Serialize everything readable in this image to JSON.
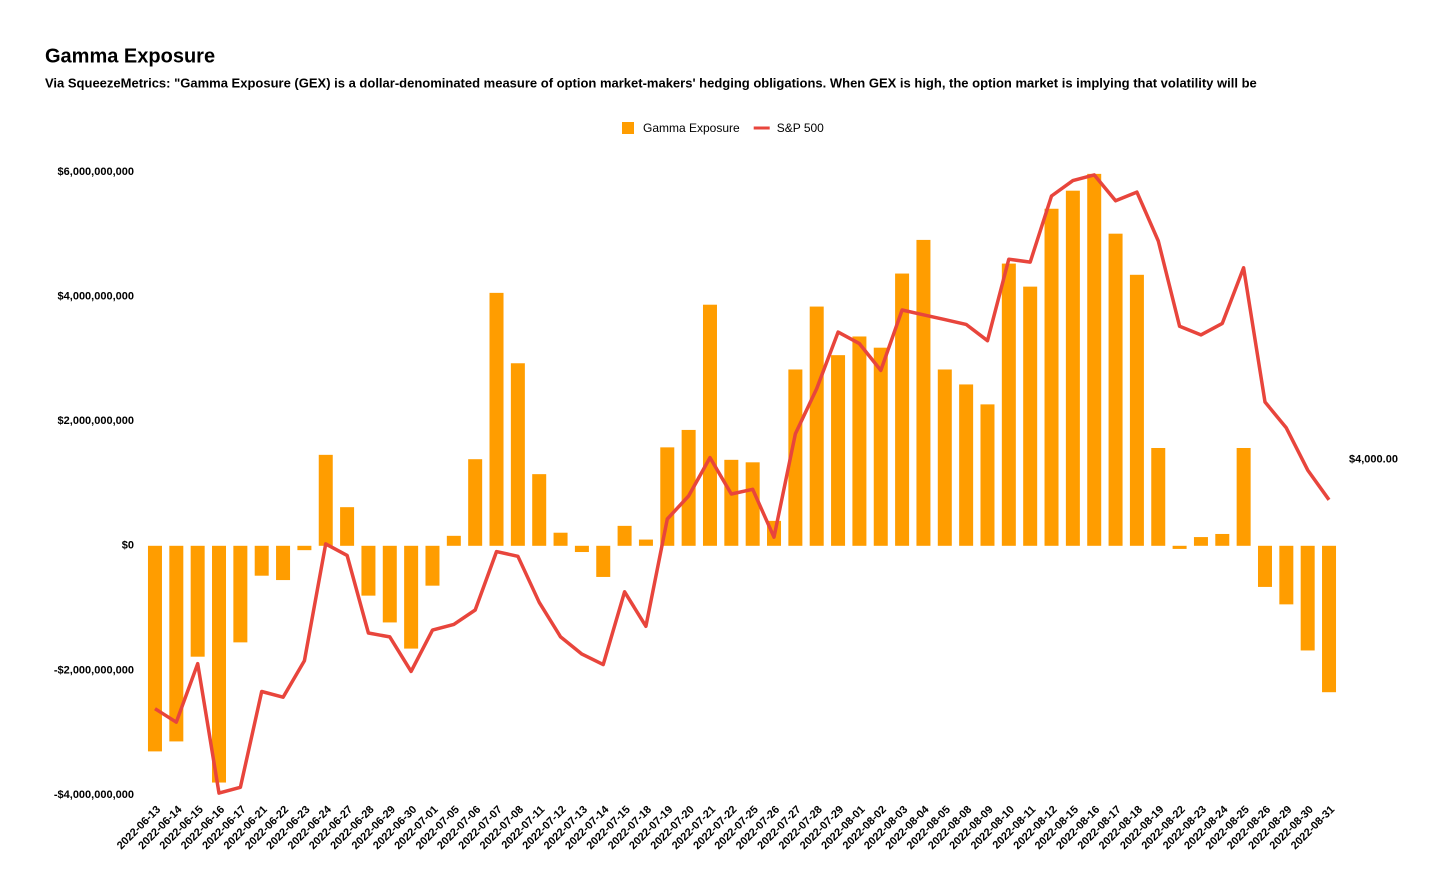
{
  "chart_data": {
    "type": "bar_line",
    "title": "Gamma Exposure",
    "subtitle": "Via SqueezeMetrics: \"Gamma Exposure (GEX) is a dollar-denominated measure of option market-makers' hedging obligations. When GEX is high, the option market is implying that volatility will be",
    "categories": [
      "2022-06-13",
      "2022-06-14",
      "2022-06-15",
      "2022-06-16",
      "2022-06-17",
      "2022-06-21",
      "2022-06-22",
      "2022-06-23",
      "2022-06-24",
      "2022-06-27",
      "2022-06-28",
      "2022-06-29",
      "2022-06-30",
      "2022-07-01",
      "2022-07-05",
      "2022-07-06",
      "2022-07-07",
      "2022-07-08",
      "2022-07-11",
      "2022-07-12",
      "2022-07-13",
      "2022-07-14",
      "2022-07-15",
      "2022-07-18",
      "2022-07-19",
      "2022-07-20",
      "2022-07-21",
      "2022-07-22",
      "2022-07-25",
      "2022-07-26",
      "2022-07-27",
      "2022-07-28",
      "2022-07-29",
      "2022-08-01",
      "2022-08-02",
      "2022-08-03",
      "2022-08-04",
      "2022-08-05",
      "2022-08-08",
      "2022-08-09",
      "2022-08-10",
      "2022-08-11",
      "2022-08-12",
      "2022-08-15",
      "2022-08-16",
      "2022-08-17",
      "2022-08-18",
      "2022-08-19",
      "2022-08-22",
      "2022-08-23",
      "2022-08-24",
      "2022-08-25",
      "2022-08-26",
      "2022-08-29",
      "2022-08-30",
      "2022-08-31"
    ],
    "series": [
      {
        "name": "Gamma Exposure",
        "type": "bar",
        "color": "#ff9d00",
        "values": [
          -3300000000,
          -3140000000,
          -1780000000,
          -3800000000,
          -1550000000,
          -480000000,
          -550000000,
          -70000000,
          1460000000,
          620000000,
          -800000000,
          -1230000000,
          -1650000000,
          -640000000,
          160000000,
          1390000000,
          4060000000,
          2930000000,
          1150000000,
          210000000,
          -100000000,
          -500000000,
          320000000,
          100000000,
          1580000000,
          1860000000,
          3870000000,
          1380000000,
          1340000000,
          400000000,
          2830000000,
          3840000000,
          3060000000,
          3360000000,
          3180000000,
          4370000000,
          4910000000,
          2830000000,
          2590000000,
          2270000000,
          4530000000,
          4160000000,
          5410000000,
          5700000000,
          5970000000,
          5010000000,
          4350000000,
          1570000000,
          -50000000,
          140000000,
          190000000,
          1570000000,
          -660000000,
          -940000000,
          -1680000000,
          -2350000000
        ]
      },
      {
        "name": "S&P 500",
        "type": "line",
        "axis": "y2",
        "color": "#e8453c",
        "values": [
          3740,
          3726,
          3787,
          3652,
          3658,
          3758,
          3752,
          3790,
          3912,
          3900,
          3819,
          3815,
          3779,
          3822,
          3828,
          3843,
          3904,
          3899,
          3851,
          3815,
          3797,
          3786,
          3862,
          3826,
          3938,
          3962,
          4002,
          3964,
          3969,
          3919,
          4027,
          4074,
          4133,
          4121,
          4093,
          4156,
          4151,
          4146,
          4141,
          4124,
          4209,
          4206,
          4275,
          4291,
          4297,
          4270,
          4279,
          4228,
          4139,
          4130,
          4142,
          4200,
          4060,
          4033,
          3989,
          3958
        ]
      }
    ],
    "ylim": [
      -4000000000,
      6000000000
    ],
    "yticks": [
      {
        "value": -4000000000,
        "label": "-$4,000,000,000"
      },
      {
        "value": -2000000000,
        "label": "-$2,000,000,000"
      },
      {
        "value": 0,
        "label": "$0"
      },
      {
        "value": 2000000000,
        "label": "$2,000,000,000"
      },
      {
        "value": 4000000000,
        "label": "$4,000,000,000"
      },
      {
        "value": 6000000000,
        "label": "$6,000,000,000"
      }
    ],
    "y2lim": [
      3650,
      4300
    ],
    "y2ticks": [
      {
        "value": 4000,
        "label": "$4,000.00"
      }
    ],
    "legend": "top",
    "grid": false
  }
}
